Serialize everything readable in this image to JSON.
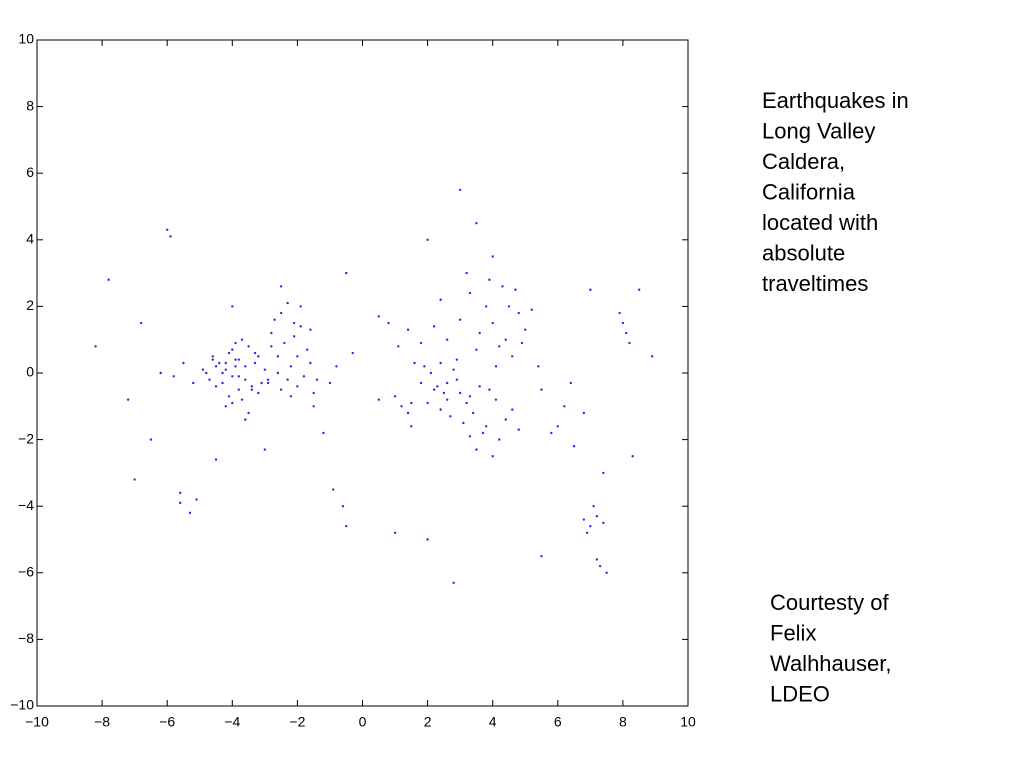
{
  "chart_data": {
    "type": "scatter",
    "xlim": [
      -10,
      10
    ],
    "ylim": [
      -10,
      10
    ],
    "xticks": [
      {
        "value": -10,
        "label": "−10"
      },
      {
        "value": -8,
        "label": "−8"
      },
      {
        "value": -6,
        "label": "−6"
      },
      {
        "value": -4,
        "label": "−4"
      },
      {
        "value": -2,
        "label": "−2"
      },
      0,
      2,
      4,
      6,
      8,
      10
    ],
    "yticks": [
      {
        "value": -10,
        "label": "−10"
      },
      {
        "value": -8,
        "label": "−8"
      },
      {
        "value": -6,
        "label": "−6"
      },
      {
        "value": -4,
        "label": "−4"
      },
      {
        "value": -2,
        "label": "−2"
      },
      0,
      2,
      4,
      6,
      8,
      10
    ],
    "grid": false,
    "series": [
      {
        "color": "#2a2ae0",
        "x": [
          -4.2,
          -3.9,
          -3.6,
          -4.5,
          -3.3,
          -4.8,
          -3.8,
          -4.1,
          -3.5,
          -4.3,
          -3.0,
          -4.6,
          -3.7,
          -4.0,
          -3.4,
          -4.4,
          -3.2,
          -3.9,
          -4.7,
          -3.6,
          -4.2,
          -3.1,
          -3.8,
          -4.0,
          -3.5,
          -4.9,
          -3.3,
          -4.1,
          -3.7,
          -4.3,
          -2.9,
          -3.6,
          -4.5,
          -3.9,
          -3.2,
          -4.0,
          -3.8,
          -4.6,
          -3.4,
          -4.2,
          -2.5,
          -2.1,
          -2.8,
          -1.9,
          -2.3,
          -1.6,
          -2.6,
          -2.0,
          -2.4,
          -1.8,
          -2.7,
          -2.2,
          -1.5,
          -2.9,
          -2.1,
          -1.7,
          -2.5,
          -2.3,
          -1.9,
          -2.6,
          -1.4,
          -2.0,
          -2.8,
          -2.2,
          -1.6,
          -5.5,
          -5.8,
          -6.2,
          -5.2,
          -6.0,
          -5.9,
          -5.6,
          -7.2,
          -7.8,
          -8.2,
          -6.5,
          -5.3,
          -5.6,
          -5.1,
          -7.0,
          -6.8,
          -1.0,
          -0.8,
          -0.5,
          -0.6,
          -0.9,
          -1.2,
          -0.3,
          -1.5,
          -4.5,
          -3.0,
          -2.5,
          -4.0,
          2.2,
          2.6,
          1.8,
          3.0,
          2.4,
          2.9,
          1.5,
          3.3,
          2.1,
          2.7,
          1.2,
          3.6,
          2.5,
          1.9,
          3.1,
          2.3,
          2.8,
          1.0,
          3.4,
          2.0,
          3.8,
          2.6,
          1.4,
          3.2,
          2.4,
          4.1,
          3.7,
          4.4,
          3.9,
          4.6,
          4.2,
          3.5,
          4.8,
          4.0,
          3.3,
          4.0,
          4.5,
          3.6,
          4.8,
          4.2,
          3.3,
          5.0,
          4.6,
          3.8,
          4.3,
          3.0,
          4.9,
          2.6,
          4.1,
          3.5,
          5.2,
          2.2,
          1.8,
          1.4,
          2.9,
          0.8,
          1.1,
          0.5,
          1.6,
          3.9,
          4.7,
          2.4,
          5.4,
          3.2,
          4.4,
          6.8,
          7.0,
          7.2,
          6.9,
          7.4,
          7.1,
          7.3,
          7.5,
          7.2,
          8.0,
          8.1,
          7.9,
          8.2,
          6.0,
          6.5,
          6.2,
          5.8,
          7.4,
          8.5,
          8.3,
          5.5,
          6.4,
          4.0,
          3.5,
          2.0,
          -0.5,
          1.0,
          2.8,
          5.5,
          7.0,
          0.5,
          1.5,
          2.0,
          6.8,
          8.9,
          3.0
        ],
        "y": [
          0.1,
          0.4,
          -0.2,
          0.2,
          0.3,
          0.0,
          -0.5,
          0.6,
          0.8,
          -0.3,
          0.1,
          0.5,
          -0.8,
          -0.1,
          -0.4,
          0.3,
          -0.6,
          0.9,
          -0.2,
          0.2,
          -1.0,
          -0.3,
          0.4,
          0.7,
          -1.2,
          0.1,
          0.6,
          -0.7,
          1.0,
          0.0,
          -0.2,
          -1.4,
          -0.4,
          0.2,
          0.5,
          -0.9,
          -0.1,
          0.4,
          -0.5,
          0.3,
          1.8,
          1.5,
          1.2,
          2.0,
          -0.2,
          0.3,
          0.5,
          -0.4,
          0.9,
          -0.1,
          1.6,
          0.2,
          -0.6,
          -0.3,
          1.1,
          0.7,
          -0.5,
          2.1,
          1.4,
          0.0,
          -0.2,
          0.5,
          0.8,
          -0.7,
          1.3,
          0.3,
          -0.1,
          0.0,
          -0.3,
          4.3,
          4.1,
          -3.9,
          -0.8,
          2.8,
          0.8,
          -2.0,
          -4.2,
          -3.6,
          -3.8,
          -3.2,
          1.5,
          -0.3,
          0.2,
          -4.6,
          -4.0,
          -3.5,
          -1.8,
          0.6,
          -1.0,
          -2.6,
          -2.3,
          2.6,
          2.0,
          -0.5,
          -0.8,
          -0.3,
          -0.6,
          -1.1,
          -0.2,
          -0.9,
          -0.7,
          0.0,
          -1.3,
          -1.0,
          -0.4,
          -0.6,
          0.2,
          -1.5,
          -0.4,
          0.1,
          -0.7,
          -1.2,
          -0.9,
          -1.6,
          -0.3,
          -1.2,
          -0.9,
          0.3,
          -0.8,
          -1.8,
          -1.4,
          -0.5,
          -1.1,
          -2.0,
          -2.3,
          -1.7,
          -2.5,
          -1.9,
          1.5,
          2.0,
          1.2,
          1.8,
          0.8,
          2.4,
          1.3,
          0.5,
          2.0,
          2.6,
          1.6,
          0.9,
          1.0,
          0.2,
          0.7,
          1.9,
          1.4,
          0.9,
          1.3,
          0.4,
          1.5,
          0.8,
          1.7,
          0.3,
          2.8,
          2.5,
          2.2,
          0.2,
          3.0,
          1.0,
          -4.4,
          -4.6,
          -4.3,
          -4.8,
          -4.5,
          -4.0,
          -5.8,
          -6.0,
          -5.6,
          1.5,
          1.2,
          1.8,
          0.9,
          -1.6,
          -2.2,
          -1.0,
          -1.8,
          -3.0,
          2.5,
          -2.5,
          -0.5,
          -0.3,
          3.5,
          4.5,
          4.0,
          3.0,
          -4.8,
          -6.3,
          -5.5,
          2.5,
          -0.8,
          -1.6,
          -5.0,
          -1.2,
          0.5,
          5.5
        ]
      }
    ],
    "annotations": [
      {
        "lines": [
          "Earthquakes in",
          "Long Valley",
          "Caldera,",
          "California",
          "located with",
          "absolute",
          "traveltimes"
        ]
      },
      {
        "lines": [
          "Courtesty of",
          "Felix",
          "Walhhauser,",
          "LDEO"
        ]
      }
    ]
  }
}
